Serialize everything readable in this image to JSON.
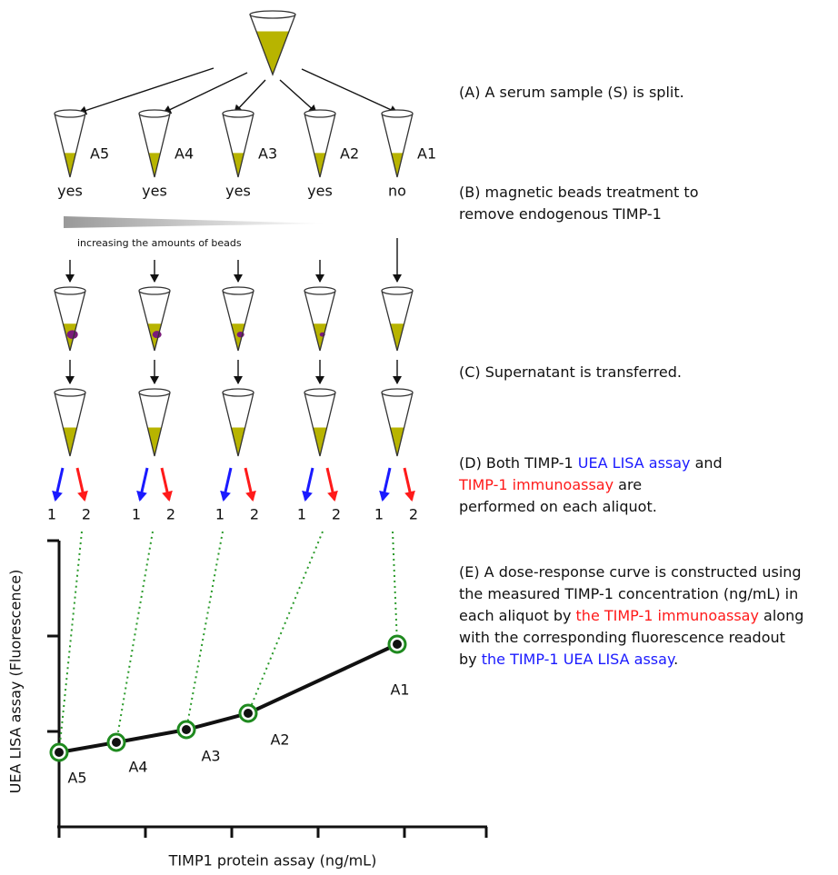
{
  "aliquots": [
    {
      "label": "A5",
      "treatment": "yes",
      "blue": "1",
      "red": "2"
    },
    {
      "label": "A4",
      "treatment": "yes",
      "blue": "1",
      "red": "2"
    },
    {
      "label": "A3",
      "treatment": "yes",
      "blue": "1",
      "red": "2"
    },
    {
      "label": "A2",
      "treatment": "yes",
      "blue": "1",
      "red": "2"
    },
    {
      "label": "A1",
      "treatment": "no",
      "blue": "1",
      "red": "2"
    }
  ],
  "beads_label": "increasing the amounts of beads",
  "steps": [
    {
      "lines": [
        [
          {
            "text": "(A) A serum sample (S) is split."
          }
        ]
      ]
    },
    {
      "lines": [
        [
          {
            "text": "(B) magnetic beads treatment to"
          }
        ],
        [
          {
            "text": "remove endogenous TIMP-1"
          }
        ]
      ]
    },
    {
      "lines": [
        [
          {
            "text": "(C) Supernatant is transferred."
          }
        ]
      ]
    },
    {
      "lines": [
        [
          {
            "text": "(D) Both TIMP-1 "
          },
          {
            "text": "UEA LISA assay",
            "color": "#1a1aff"
          },
          {
            "text": " and"
          }
        ],
        [
          {
            "text": "TIMP-1 immunoassay",
            "color": "#ff1a1a"
          },
          {
            "text": " are"
          }
        ],
        [
          {
            "text": "performed on each aliquot."
          }
        ]
      ]
    },
    {
      "lines": [
        [
          {
            "text": "(E) A dose-response curve is constructed using"
          }
        ],
        [
          {
            "text": "the measured TIMP-1 concentration (ng/mL) in"
          }
        ],
        [
          {
            "text": "each aliquot by "
          },
          {
            "text": "the TIMP-1 immunoassay",
            "color": "#ff1a1a"
          },
          {
            "text": " along"
          }
        ],
        [
          {
            "text": "with the corresponding fluorescence readout"
          }
        ],
        [
          {
            "text": "by "
          },
          {
            "text": "the TIMP-1 UEA LISA assay",
            "color": "#1a1aff"
          },
          {
            "text": "."
          }
        ]
      ]
    }
  ],
  "plot": {
    "x_label": "TIMP1 protein assay (ng/mL)",
    "y_label": "UEA LISA assay (Fluorescence)",
    "x_label_color": "#e8201a",
    "y_label_color": "#1a1aff"
  }
}
